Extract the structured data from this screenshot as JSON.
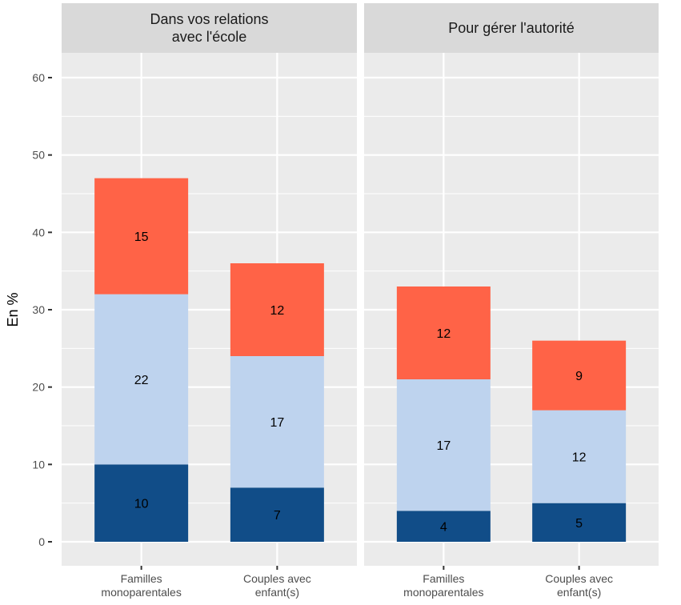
{
  "chart_data": {
    "type": "bar",
    "stacked": true,
    "title": "",
    "xlabel": "",
    "ylabel": "En %",
    "ylim": [
      -3,
      63
    ],
    "yticks": [
      0,
      10,
      20,
      30,
      40,
      50,
      60
    ],
    "grid": true,
    "legend": "none",
    "colors": {
      "bottom": "#114D88",
      "middle": "#BED3EE",
      "top": "#FF6347",
      "panel_bg": "#EBEBEB",
      "strip_bg": "#D9D9D9",
      "grid": "#FFFFFF"
    },
    "categories": [
      [
        "Familles",
        "monoparentales"
      ],
      [
        "Couples avec",
        "enfant(s)"
      ]
    ],
    "panels": [
      {
        "title": [
          "Dans vos relations",
          "avec l'école"
        ],
        "series": [
          {
            "name": "bottom",
            "values": [
              10,
              7
            ]
          },
          {
            "name": "middle",
            "values": [
              22,
              17
            ]
          },
          {
            "name": "top",
            "values": [
              15,
              12
            ]
          }
        ]
      },
      {
        "title": [
          "Pour gérer l'autorité"
        ],
        "series": [
          {
            "name": "bottom",
            "values": [
              4,
              5
            ]
          },
          {
            "name": "middle",
            "values": [
              17,
              12
            ]
          },
          {
            "name": "top",
            "values": [
              12,
              9
            ]
          }
        ]
      }
    ]
  }
}
